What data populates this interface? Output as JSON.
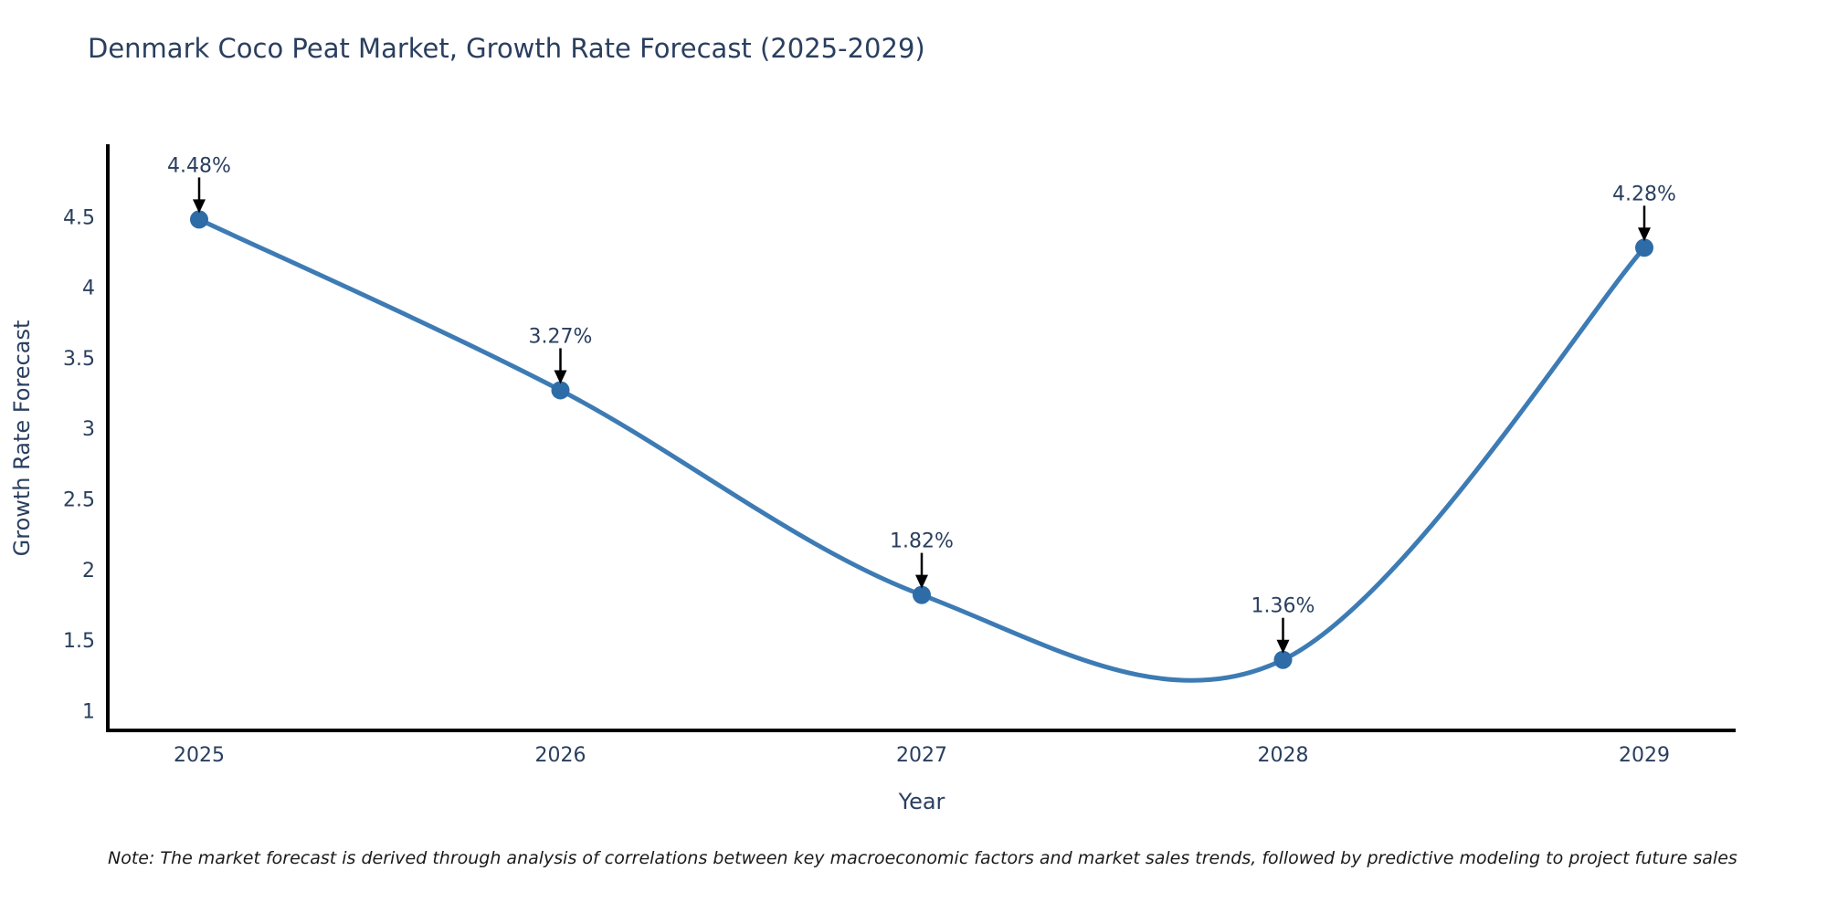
{
  "title": "Denmark Coco Peat Market, Growth Rate Forecast (2025-2029)",
  "note": "Note: The market forecast is derived through analysis of correlations between key macroeconomic factors and market sales trends, followed by predictive modeling to project future sales",
  "chart_data": {
    "type": "line",
    "line_shape": "spline",
    "title": "Denmark Coco Peat Market, Growth Rate Forecast (2025-2029)",
    "xlabel": "Year",
    "ylabel": "Growth Rate Forecast",
    "x": [
      "2025",
      "2026",
      "2027",
      "2028",
      "2029"
    ],
    "values": [
      4.48,
      3.27,
      1.82,
      1.36,
      4.28
    ],
    "point_labels": [
      "4.48%",
      "3.27%",
      "1.82%",
      "1.36%",
      "4.28%"
    ],
    "yticks": [
      1,
      1.5,
      2,
      2.5,
      3,
      3.5,
      4,
      4.5
    ],
    "ylim": [
      0.86,
      5.0
    ],
    "grid": false,
    "legend_position": "none",
    "colors": {
      "line": "#3d7bb4",
      "marker": "#2e6ca8",
      "axis": "#000000",
      "tick_text": "#2a3f5f",
      "title_text": "#2a3f5f",
      "annotation_text": "#2a3f5f",
      "annotation_arrow": "#000000"
    }
  }
}
